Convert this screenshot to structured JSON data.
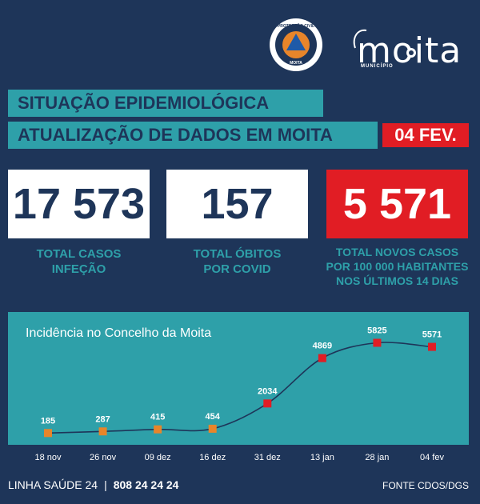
{
  "header": {
    "logo_civil_text": "PROTECÇÃO CIVIL MOITA",
    "logo_moita_word": "moita",
    "logo_moita_sub": "MUNICÍPIO"
  },
  "title": "SITUAÇÃO EPIDEMIOLÓGICA",
  "subtitle": "ATUALIZAÇÃO DE DADOS EM MOITA",
  "date_badge": "04 FEV.",
  "stats": {
    "cases": {
      "value": "17 573",
      "label": "TOTAL CASOS\nINFEÇÃO"
    },
    "deaths": {
      "value": "157",
      "label": "TOTAL ÓBITOS\nPOR COVID"
    },
    "incidence": {
      "value": "5 571",
      "label": "TOTAL NOVOS CASOS\nPOR 100 000 HABITANTES\nNOS ÚLTIMOS 14 DIAS"
    }
  },
  "colors": {
    "navy": "#1e3559",
    "teal": "#2ea0a9",
    "red": "#e11d24",
    "orange": "#e8852a"
  },
  "chart_data": {
    "type": "line",
    "title": "Incidência no Concelho da Moita",
    "categories": [
      "18 nov",
      "26 nov",
      "09 dez",
      "16 dez",
      "31 dez",
      "13 jan",
      "28 jan",
      "04 fev"
    ],
    "values": [
      185,
      287,
      415,
      454,
      2034,
      4869,
      5825,
      5571
    ],
    "value_labels": [
      "185",
      "287",
      "415",
      "454",
      "2034",
      "4869",
      "5825",
      "5571"
    ],
    "marker_colors": [
      "#e8852a",
      "#e8852a",
      "#e8852a",
      "#e8852a",
      "#e11d24",
      "#e11d24",
      "#e11d24",
      "#e11d24"
    ],
    "ylim": [
      0,
      6500
    ],
    "xlabel": "",
    "ylabel": "",
    "grid": false
  },
  "footer": {
    "left_label": "LINHA SAÚDE 24",
    "separator": "|",
    "phone": "808 24 24 24",
    "source": "FONTE CDOS/DGS"
  }
}
